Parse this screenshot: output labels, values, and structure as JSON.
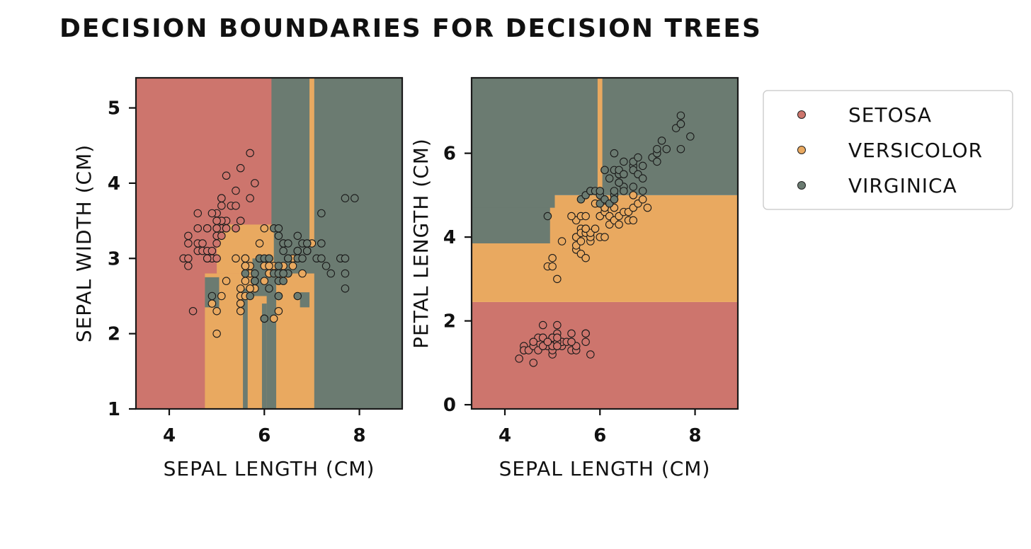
{
  "title": "DECISION BOUNDARIES FOR DECISION TREES",
  "legend": {
    "placement": "right",
    "entries": [
      {
        "label": "SETOSA",
        "color": "#cd756d"
      },
      {
        "label": "VERSICOLOR",
        "color": "#e9a960"
      },
      {
        "label": "VIRGINICA",
        "color": "#6b7b71"
      }
    ]
  },
  "chart_data": [
    {
      "type": "scatter",
      "xlabel": "SEPAL LENGTH (CM)",
      "ylabel": "SEPAL WIDTH (CM)",
      "xlim": [
        3.3,
        8.9
      ],
      "ylim": [
        1.0,
        5.4
      ],
      "xticks": [
        "4",
        "6",
        "8"
      ],
      "yticks": [
        "1",
        "2",
        "3",
        "4",
        "5"
      ],
      "grid": false,
      "regions": [
        {
          "class": "setosa",
          "x": [
            3.3,
            8.9
          ],
          "y": [
            1.0,
            5.4
          ]
        },
        {
          "class": "virginica",
          "x": [
            6.15,
            8.9
          ],
          "y": [
            1.0,
            5.4
          ]
        },
        {
          "class": "versicolor",
          "x": [
            6.95,
            7.05
          ],
          "y": [
            3.15,
            5.4
          ]
        },
        {
          "class": "versicolor",
          "x": [
            4.75,
            7.05
          ],
          "y": [
            1.0,
            2.8
          ]
        },
        {
          "class": "versicolor",
          "x": [
            5.0,
            6.2
          ],
          "y": [
            2.8,
            3.45
          ]
        },
        {
          "class": "virginica",
          "x": [
            4.75,
            5.05
          ],
          "y": [
            2.35,
            2.75
          ]
        },
        {
          "class": "virginica",
          "x": [
            5.55,
            5.65
          ],
          "y": [
            1.0,
            2.6
          ]
        },
        {
          "class": "virginica",
          "x": [
            5.95,
            6.05
          ],
          "y": [
            1.0,
            2.4
          ]
        },
        {
          "class": "virginica",
          "x": [
            6.05,
            6.25
          ],
          "y": [
            1.0,
            2.75
          ]
        },
        {
          "class": "virginica",
          "x": [
            6.75,
            6.95
          ],
          "y": [
            2.35,
            2.55
          ]
        },
        {
          "class": "virginica",
          "x": [
            5.75,
            6.15
          ],
          "y": [
            2.5,
            3.0
          ]
        }
      ],
      "series": [
        {
          "name": "SETOSA",
          "class": "setosa",
          "x": [
            4.3,
            4.4,
            4.4,
            4.4,
            4.5,
            4.6,
            4.6,
            4.6,
            4.7,
            4.7,
            4.8,
            4.8,
            4.8,
            4.9,
            4.9,
            5.0,
            5.0,
            5.0,
            5.0,
            5.0,
            5.0,
            5.1,
            5.1,
            5.1,
            5.1,
            5.1,
            5.1,
            5.2,
            5.2,
            5.2,
            5.3,
            5.4,
            5.4,
            5.4,
            5.5,
            5.5,
            5.7,
            5.7,
            5.8,
            5.1,
            4.9,
            5.0,
            4.8,
            5.4,
            5.2,
            4.6,
            4.8,
            5.0,
            5.5,
            4.4
          ],
          "y": [
            3.0,
            2.9,
            3.0,
            3.2,
            2.3,
            3.1,
            3.2,
            3.4,
            3.2,
            3.1,
            3.0,
            3.4,
            3.1,
            3.0,
            3.1,
            3.0,
            3.2,
            3.3,
            3.4,
            3.5,
            3.6,
            3.3,
            3.4,
            3.5,
            3.7,
            3.8,
            3.8,
            3.4,
            3.5,
            4.1,
            3.7,
            3.4,
            3.7,
            3.9,
            3.5,
            4.2,
            3.8,
            4.4,
            4.0,
            3.5,
            3.6,
            3.4,
            3.0,
            3.4,
            3.4,
            3.6,
            3.4,
            3.5,
            3.5,
            3.3
          ]
        },
        {
          "name": "VERSICOLOR",
          "class": "versicolor",
          "x": [
            4.9,
            5.0,
            5.0,
            5.1,
            5.2,
            5.5,
            5.5,
            5.5,
            5.5,
            5.5,
            5.6,
            5.6,
            5.6,
            5.6,
            5.6,
            5.7,
            5.7,
            5.7,
            5.7,
            5.8,
            5.8,
            5.8,
            5.9,
            5.9,
            6.0,
            6.0,
            6.0,
            6.0,
            6.1,
            6.1,
            6.1,
            6.2,
            6.2,
            6.3,
            6.3,
            6.4,
            6.4,
            6.5,
            6.6,
            6.6,
            6.7,
            6.7,
            6.7,
            6.8,
            6.9,
            7.0,
            5.4,
            5.6,
            6.1,
            5.7
          ],
          "y": [
            2.4,
            2.0,
            2.3,
            2.5,
            2.7,
            2.3,
            2.4,
            2.4,
            2.5,
            2.6,
            2.5,
            2.7,
            2.9,
            3.0,
            3.0,
            2.6,
            2.8,
            2.8,
            2.9,
            2.6,
            2.7,
            2.7,
            3.0,
            3.2,
            2.2,
            2.7,
            2.9,
            3.4,
            2.8,
            2.8,
            3.0,
            2.2,
            2.9,
            2.3,
            2.5,
            2.9,
            3.2,
            2.8,
            2.9,
            3.0,
            3.0,
            3.1,
            3.1,
            2.8,
            3.1,
            3.2,
            3.0,
            2.9,
            2.9,
            2.6
          ]
        },
        {
          "name": "VIRGINICA",
          "class": "virginica",
          "x": [
            4.9,
            5.6,
            5.7,
            5.8,
            5.8,
            5.8,
            5.9,
            6.0,
            6.0,
            6.1,
            6.1,
            6.2,
            6.3,
            6.3,
            6.3,
            6.3,
            6.3,
            6.4,
            6.4,
            6.4,
            6.4,
            6.5,
            6.5,
            6.5,
            6.5,
            6.7,
            6.7,
            6.7,
            6.7,
            6.8,
            6.8,
            6.9,
            6.9,
            6.9,
            7.1,
            7.2,
            7.2,
            7.2,
            7.3,
            7.4,
            7.6,
            7.7,
            7.7,
            7.7,
            7.7,
            7.9,
            6.2,
            6.3,
            6.5,
            6.4
          ],
          "y": [
            2.5,
            2.8,
            2.5,
            2.7,
            2.8,
            2.7,
            3.0,
            2.2,
            3.0,
            2.6,
            3.0,
            2.8,
            2.5,
            2.7,
            2.8,
            2.9,
            3.3,
            2.7,
            2.8,
            3.1,
            3.2,
            3.0,
            3.0,
            3.2,
            2.8,
            2.5,
            3.0,
            3.1,
            3.3,
            3.0,
            3.2,
            3.1,
            3.2,
            3.1,
            3.0,
            3.0,
            3.2,
            3.6,
            2.9,
            2.8,
            3.0,
            2.6,
            2.8,
            3.0,
            3.8,
            3.8,
            3.4,
            3.4,
            3.0,
            2.8
          ]
        }
      ]
    },
    {
      "type": "scatter",
      "xlabel": "SEPAL LENGTH (CM)",
      "ylabel": "PETAL LENGTH (CM)",
      "xlim": [
        3.3,
        8.9
      ],
      "ylim": [
        -0.1,
        7.8
      ],
      "xticks": [
        "4",
        "6",
        "8"
      ],
      "yticks": [
        "0",
        "2",
        "4",
        "6"
      ],
      "grid": false,
      "regions": [
        {
          "class": "setosa",
          "x": [
            3.3,
            8.9
          ],
          "y": [
            -0.1,
            2.45
          ]
        },
        {
          "class": "versicolor",
          "x": [
            3.3,
            8.9
          ],
          "y": [
            2.45,
            5.0
          ]
        },
        {
          "class": "virginica",
          "x": [
            3.3,
            8.9
          ],
          "y": [
            5.0,
            7.8
          ]
        },
        {
          "class": "virginica",
          "x": [
            3.3,
            4.95
          ],
          "y": [
            3.85,
            7.8
          ]
        },
        {
          "class": "virginica",
          "x": [
            3.3,
            5.05
          ],
          "y": [
            4.7,
            7.8
          ]
        },
        {
          "class": "versicolor",
          "x": [
            5.95,
            6.05
          ],
          "y": [
            5.0,
            7.8
          ]
        }
      ],
      "series": [
        {
          "name": "SETOSA",
          "class": "setosa",
          "x": [
            4.3,
            4.4,
            4.4,
            4.4,
            4.5,
            4.6,
            4.6,
            4.6,
            4.7,
            4.7,
            4.8,
            4.8,
            4.8,
            4.9,
            4.9,
            5.0,
            5.0,
            5.0,
            5.0,
            5.0,
            5.0,
            5.1,
            5.1,
            5.1,
            5.1,
            5.1,
            5.1,
            5.2,
            5.2,
            5.2,
            5.3,
            5.4,
            5.4,
            5.4,
            5.5,
            5.5,
            5.7,
            5.7,
            5.8,
            4.6,
            4.8,
            5.0,
            5.1,
            4.8,
            5.0,
            5.4,
            5.1,
            4.9,
            5.1,
            5.7
          ],
          "y": [
            1.1,
            1.4,
            1.3,
            1.3,
            1.3,
            1.5,
            1.4,
            1.0,
            1.3,
            1.6,
            1.4,
            1.6,
            1.6,
            1.4,
            1.5,
            1.6,
            1.2,
            1.4,
            1.5,
            1.3,
            1.4,
            1.5,
            1.7,
            1.4,
            1.5,
            1.9,
            1.6,
            1.4,
            1.5,
            1.5,
            1.5,
            1.7,
            1.5,
            1.3,
            1.3,
            1.4,
            1.7,
            1.5,
            1.2,
            1.5,
            1.9,
            1.6,
            1.5,
            1.4,
            1.6,
            1.5,
            1.4,
            1.5,
            1.6,
            1.7
          ]
        },
        {
          "name": "VERSICOLOR",
          "class": "versicolor",
          "x": [
            4.9,
            5.0,
            5.0,
            5.1,
            5.2,
            5.5,
            5.5,
            5.5,
            5.5,
            5.5,
            5.6,
            5.6,
            5.6,
            5.6,
            5.6,
            5.7,
            5.7,
            5.7,
            5.7,
            5.8,
            5.8,
            5.8,
            5.9,
            5.9,
            6.0,
            6.0,
            6.0,
            6.0,
            6.1,
            6.1,
            6.1,
            6.2,
            6.2,
            6.3,
            6.3,
            6.4,
            6.4,
            6.5,
            6.6,
            6.6,
            6.7,
            6.7,
            6.7,
            6.8,
            6.9,
            7.0,
            5.4,
            6.1,
            6.3,
            5.7
          ],
          "y": [
            3.3,
            3.3,
            3.5,
            3.0,
            3.9,
            4.0,
            3.7,
            3.8,
            4.0,
            4.4,
            3.9,
            4.2,
            3.6,
            4.5,
            4.1,
            3.5,
            4.1,
            4.2,
            4.5,
            3.9,
            4.0,
            4.1,
            4.2,
            4.8,
            4.0,
            4.5,
            4.5,
            5.1,
            4.0,
            4.7,
            4.6,
            4.3,
            4.5,
            4.4,
            4.7,
            4.3,
            4.5,
            4.6,
            4.4,
            4.6,
            4.4,
            4.7,
            5.0,
            4.8,
            4.9,
            4.7,
            4.5,
            4.7,
            4.9,
            4.2
          ]
        },
        {
          "name": "VIRGINICA",
          "class": "virginica",
          "x": [
            4.9,
            5.6,
            5.7,
            5.8,
            5.8,
            5.8,
            5.9,
            6.0,
            6.0,
            6.1,
            6.1,
            6.2,
            6.3,
            6.3,
            6.3,
            6.3,
            6.3,
            6.4,
            6.4,
            6.4,
            6.4,
            6.5,
            6.5,
            6.5,
            6.5,
            6.7,
            6.7,
            6.7,
            6.7,
            6.8,
            6.8,
            6.9,
            6.9,
            6.9,
            7.1,
            7.2,
            7.2,
            7.2,
            7.3,
            7.4,
            7.6,
            7.7,
            7.7,
            7.7,
            7.7,
            7.9,
            6.2,
            6.4,
            6.1,
            6.0
          ],
          "y": [
            4.5,
            4.9,
            5.0,
            5.1,
            5.1,
            5.1,
            5.1,
            4.8,
            5.0,
            5.6,
            4.9,
            4.8,
            5.0,
            4.9,
            5.1,
            5.6,
            6.0,
            5.3,
            5.5,
            5.5,
            5.6,
            5.2,
            5.5,
            5.8,
            5.1,
            5.7,
            5.8,
            5.2,
            5.6,
            5.5,
            5.9,
            5.4,
            5.7,
            5.1,
            5.9,
            5.8,
            6.0,
            6.1,
            6.3,
            6.1,
            6.6,
            6.1,
            6.7,
            6.9,
            6.7,
            6.4,
            5.4,
            5.3,
            5.6,
            5.1
          ]
        }
      ]
    }
  ]
}
